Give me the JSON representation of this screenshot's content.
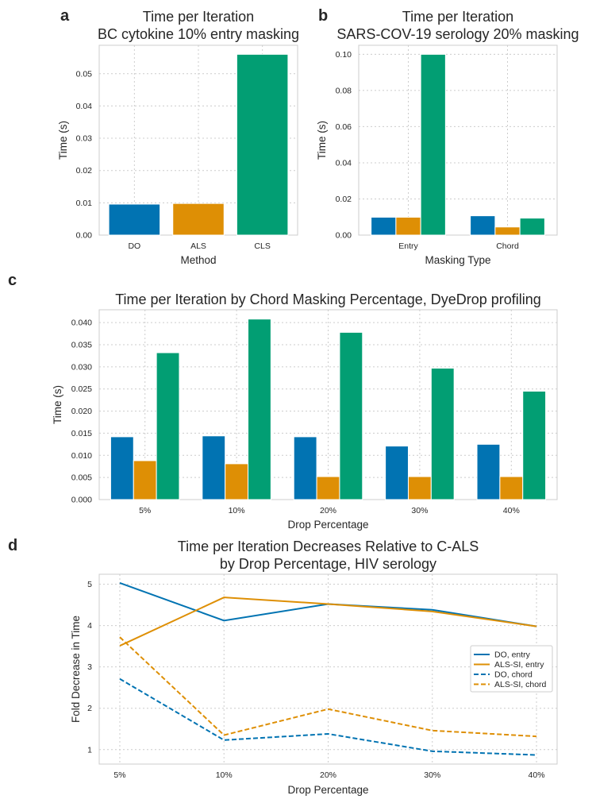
{
  "panels": [
    {
      "letter": "a"
    },
    {
      "letter": "b"
    },
    {
      "letter": "c"
    },
    {
      "letter": "d"
    }
  ],
  "colors": {
    "blue": "#0173b2",
    "orange": "#de8f05",
    "green": "#029e73",
    "grid": "#cccccc",
    "axes": "#cccccc"
  },
  "chart_data": [
    {
      "type": "bar",
      "title": "Time per Iteration\nBC cytokine 10% entry masking",
      "xlabel": "Method",
      "ylabel": "Time (s)",
      "categories": [
        "DO",
        "ALS",
        "CLS"
      ],
      "values": [
        0.0096,
        0.0098,
        0.056
      ],
      "bar_colors": [
        "#0173b2",
        "#de8f05",
        "#029e73"
      ],
      "ylim": [
        0,
        0.0588
      ],
      "yticks": [
        "0.00",
        "0.01",
        "0.02",
        "0.03",
        "0.04",
        "0.05"
      ],
      "ytick_values": [
        0,
        0.01,
        0.02,
        0.03,
        0.04,
        0.05
      ],
      "grid": true
    },
    {
      "type": "bar",
      "title": "Time per Iteration\nSARS-COV-19 serology 20% masking",
      "xlabel": "Masking Type",
      "ylabel": "Time (s)",
      "categories": [
        "Entry",
        "Chord"
      ],
      "series": [
        {
          "values": [
            0.0099,
            0.0107
          ],
          "color": "#0173b2"
        },
        {
          "values": [
            0.0099,
            0.0045
          ],
          "color": "#de8f05"
        },
        {
          "values": [
            0.1,
            0.0094
          ],
          "color": "#029e73"
        }
      ],
      "ylim": [
        0,
        0.105
      ],
      "yticks": [
        "0.00",
        "0.02",
        "0.04",
        "0.06",
        "0.08",
        "0.10"
      ],
      "ytick_values": [
        0,
        0.02,
        0.04,
        0.06,
        0.08,
        0.1
      ],
      "grid": true
    },
    {
      "type": "bar",
      "title": "Time per Iteration by Chord Masking Percentage, DyeDrop profiling",
      "xlabel": "Drop Percentage",
      "ylabel": "Time (s)",
      "categories": [
        "5%",
        "10%",
        "20%",
        "30%",
        "40%"
      ],
      "series": [
        {
          "values": [
            0.0142,
            0.0144,
            0.0142,
            0.0121,
            0.0125
          ],
          "color": "#0173b2"
        },
        {
          "values": [
            0.0088,
            0.0081,
            0.0052,
            0.0052,
            0.0052
          ],
          "color": "#de8f05"
        },
        {
          "values": [
            0.0332,
            0.0408,
            0.0378,
            0.0297,
            0.0245
          ],
          "color": "#029e73"
        }
      ],
      "ylim": [
        0,
        0.0429
      ],
      "yticks": [
        "0.000",
        "0.005",
        "0.010",
        "0.015",
        "0.020",
        "0.025",
        "0.030",
        "0.035",
        "0.040"
      ],
      "ytick_values": [
        0,
        0.005,
        0.01,
        0.015,
        0.02,
        0.025,
        0.03,
        0.035,
        0.04
      ],
      "grid": true
    },
    {
      "type": "line",
      "title": "Time per Iteration Decreases Relative to C-ALS\nby Drop Percentage, HIV serology",
      "xlabel": "Drop Percentage",
      "ylabel": "Fold Decrease in Time",
      "categories": [
        "5%",
        "10%",
        "20%",
        "30%",
        "40%"
      ],
      "series": [
        {
          "name": "DO, entry",
          "values": [
            5.03,
            4.12,
            4.52,
            4.38,
            3.98
          ],
          "color": "#0173b2",
          "dash": false
        },
        {
          "name": "ALS-SI, entry",
          "values": [
            3.51,
            4.68,
            4.52,
            4.34,
            3.98
          ],
          "color": "#de8f05",
          "dash": false
        },
        {
          "name": "DO, chord",
          "values": [
            2.71,
            1.23,
            1.38,
            0.96,
            0.87
          ],
          "color": "#0173b2",
          "dash": true
        },
        {
          "name": "ALS-SI, chord",
          "values": [
            3.72,
            1.35,
            1.98,
            1.46,
            1.32
          ],
          "color": "#de8f05",
          "dash": true
        }
      ],
      "ylim": [
        0.65,
        5.24
      ],
      "yticks": [
        "1",
        "2",
        "3",
        "4",
        "5"
      ],
      "ytick_values": [
        1,
        2,
        3,
        4,
        5
      ],
      "legend": "center-right",
      "grid": true
    }
  ]
}
